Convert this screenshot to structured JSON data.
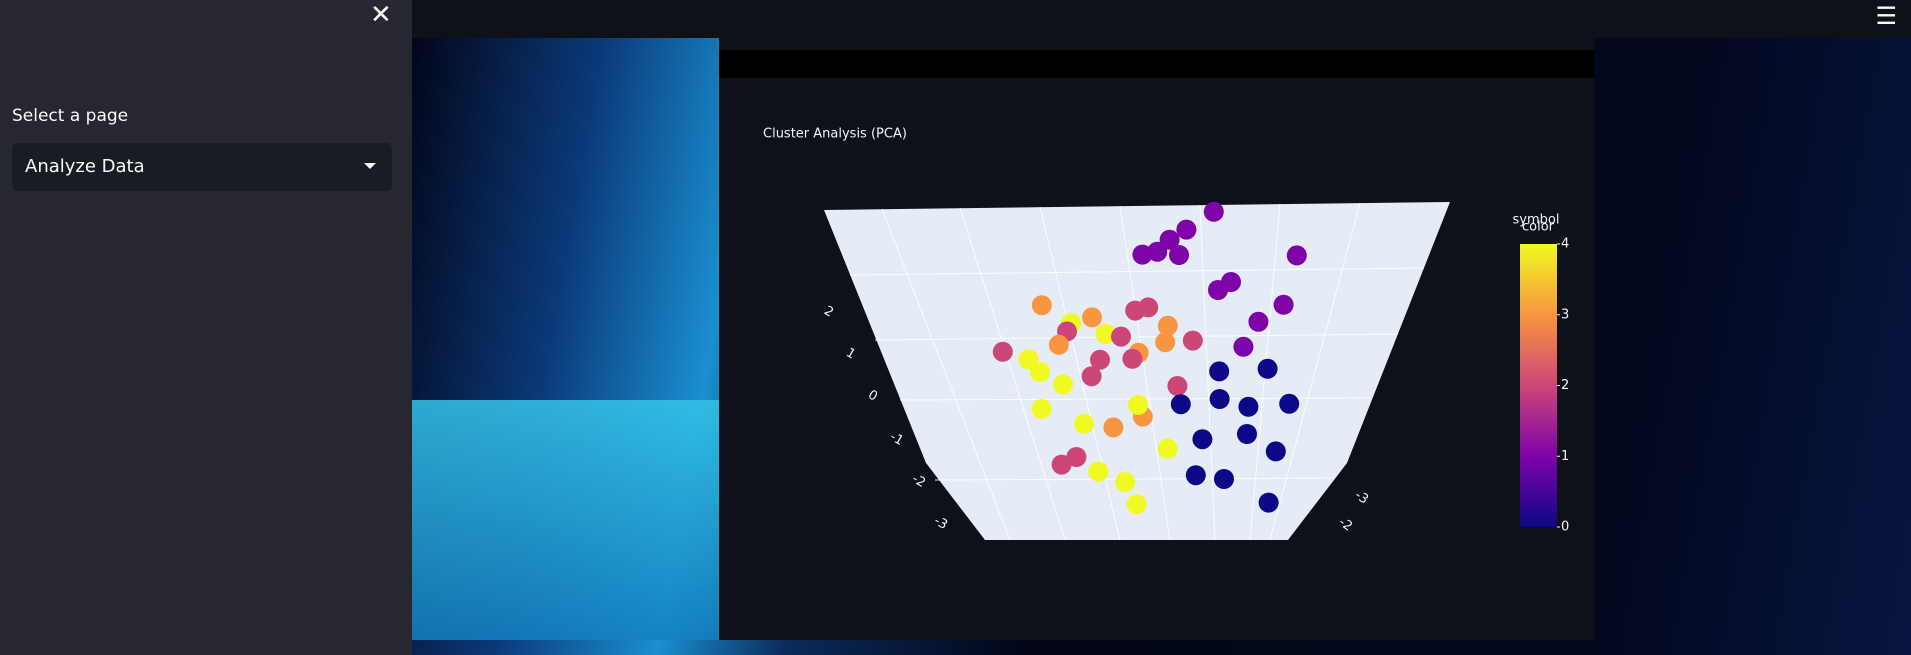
{
  "sidebar": {
    "select_label": "Select a page",
    "selected": "Analyze Data"
  },
  "chart_data": {
    "type": "scatter3d",
    "title": "Cluster Analysis (PCA)",
    "legend_title": "symbol",
    "colorbar_title": "color",
    "colorscale": [
      "#0d0887",
      "#7e03a8",
      "#cc4778",
      "#f89540",
      "#f0f921"
    ],
    "clim": [
      0,
      4
    ],
    "cticks": [
      0,
      1,
      2,
      3,
      4
    ],
    "zticks": [
      2,
      1,
      0,
      -1,
      -2,
      -3
    ],
    "yticks": [
      -3,
      -2
    ],
    "x": [
      1.2,
      1.5,
      1.8,
      2.1,
      1.0,
      1.4,
      2.4,
      0.8,
      1.7,
      2.2,
      0.6,
      1.1,
      0.5,
      1,
      1.5,
      0.2,
      1.8,
      0.8,
      2.2,
      1.3,
      0.4,
      2.6,
      -0.2,
      1.1,
      -0.5,
      -1,
      -0.2,
      -1.5,
      0.3,
      -0.8,
      -1.8,
      -0.1,
      -2.4,
      0.6,
      -1.2,
      -0.6,
      -1,
      -0.3,
      -1.4,
      0.1,
      -0.7,
      -1.9,
      0.4,
      -0.4,
      -1.5,
      -2,
      -1,
      -0.6,
      -1.8,
      -0.3,
      -2.3,
      -1.2,
      0,
      -0.8,
      -1.6,
      0.2
    ],
    "y": [
      0,
      0.5,
      -0.3,
      0.2,
      0.8,
      -0.6,
      0,
      0.3,
      1,
      -0.5,
      -0.2,
      -0.9,
      0,
      0.5,
      -0.3,
      0.4,
      0.2,
      -0.5,
      0.3,
      0.9,
      -0.8,
      -0.2,
      0.2,
      0,
      0,
      0.4,
      -0.3,
      0.2,
      0.5,
      -0.6,
      0.8,
      0.2,
      -0.4,
      0.4,
      -0.2,
      1,
      0,
      0.3,
      -0.5,
      0.6,
      0.2,
      0.1,
      -0.4,
      0.8,
      0,
      0.3,
      -0.4,
      0.5,
      -0.2,
      0.2,
      0.6,
      0.9,
      -0.6,
      0.1,
      0.7,
      0.3
    ],
    "z": [
      -0.5,
      -1,
      -0.8,
      -1.5,
      -1.8,
      -0.2,
      -0.6,
      -1.2,
      -2.2,
      -0.1,
      -0.7,
      -2.5,
      2.5,
      2,
      1.8,
      3,
      1.2,
      2.8,
      1.6,
      1,
      2.2,
      2.4,
      2.6,
      3.4,
      0.8,
      0.5,
      0.2,
      1,
      0,
      -0.3,
      -1.5,
      1.5,
      0.3,
      0.9,
      -1.8,
      1.8,
      1.2,
      0.6,
      0.4,
      1.3,
      -1,
      1.5,
      0.5,
      -0.5,
      -0.2,
      0.2,
      -1.2,
      -2,
      -0.8,
      -2.6,
      0.6,
      -1.6,
      -0.9,
      0.9,
      1.4,
      -1.4
    ],
    "color_values": [
      0,
      0,
      0,
      0,
      0,
      0,
      0,
      0,
      0,
      0,
      0,
      0,
      1,
      1,
      1,
      1,
      1,
      1,
      1,
      1,
      1,
      1,
      1,
      1,
      2,
      2,
      2,
      2,
      2,
      2,
      2,
      2,
      2,
      2,
      2,
      2,
      3,
      3,
      3,
      3,
      3,
      3,
      3,
      3,
      4,
      4,
      4,
      4,
      4,
      4,
      4,
      4,
      4,
      4,
      4,
      4
    ]
  }
}
